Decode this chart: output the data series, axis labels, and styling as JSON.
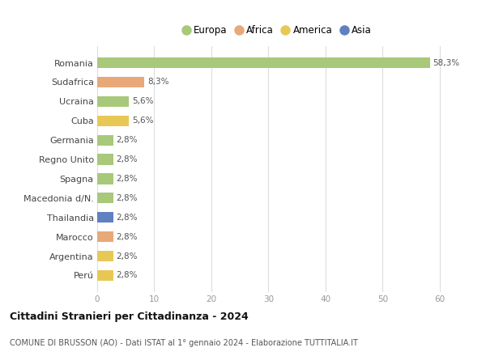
{
  "countries": [
    "Romania",
    "Sudafrica",
    "Ucraina",
    "Cuba",
    "Germania",
    "Regno Unito",
    "Spagna",
    "Macedonia d/N.",
    "Thailandia",
    "Marocco",
    "Argentina",
    "Perú"
  ],
  "values": [
    58.3,
    8.3,
    5.6,
    5.6,
    2.8,
    2.8,
    2.8,
    2.8,
    2.8,
    2.8,
    2.8,
    2.8
  ],
  "labels": [
    "58,3%",
    "8,3%",
    "5,6%",
    "5,6%",
    "2,8%",
    "2,8%",
    "2,8%",
    "2,8%",
    "2,8%",
    "2,8%",
    "2,8%",
    "2,8%"
  ],
  "colors": [
    "#a8c87a",
    "#e8a878",
    "#a8c87a",
    "#e8c855",
    "#a8c87a",
    "#a8c87a",
    "#a8c87a",
    "#a8c87a",
    "#6080c0",
    "#e8a878",
    "#e8c855",
    "#e8c855"
  ],
  "legend": [
    {
      "label": "Europa",
      "color": "#a8c87a"
    },
    {
      "label": "Africa",
      "color": "#e8a878"
    },
    {
      "label": "America",
      "color": "#e8c855"
    },
    {
      "label": "Asia",
      "color": "#6080c0"
    }
  ],
  "title1": "Cittadini Stranieri per Cittadinanza - 2024",
  "title2": "COMUNE DI BRUSSON (AO) - Dati ISTAT al 1° gennaio 2024 - Elaborazione TUTTITALIA.IT",
  "xlim": [
    0,
    63
  ],
  "xticks": [
    0,
    10,
    20,
    30,
    40,
    50,
    60
  ],
  "background_color": "#ffffff",
  "grid_color": "#dddddd",
  "bar_height": 0.55
}
